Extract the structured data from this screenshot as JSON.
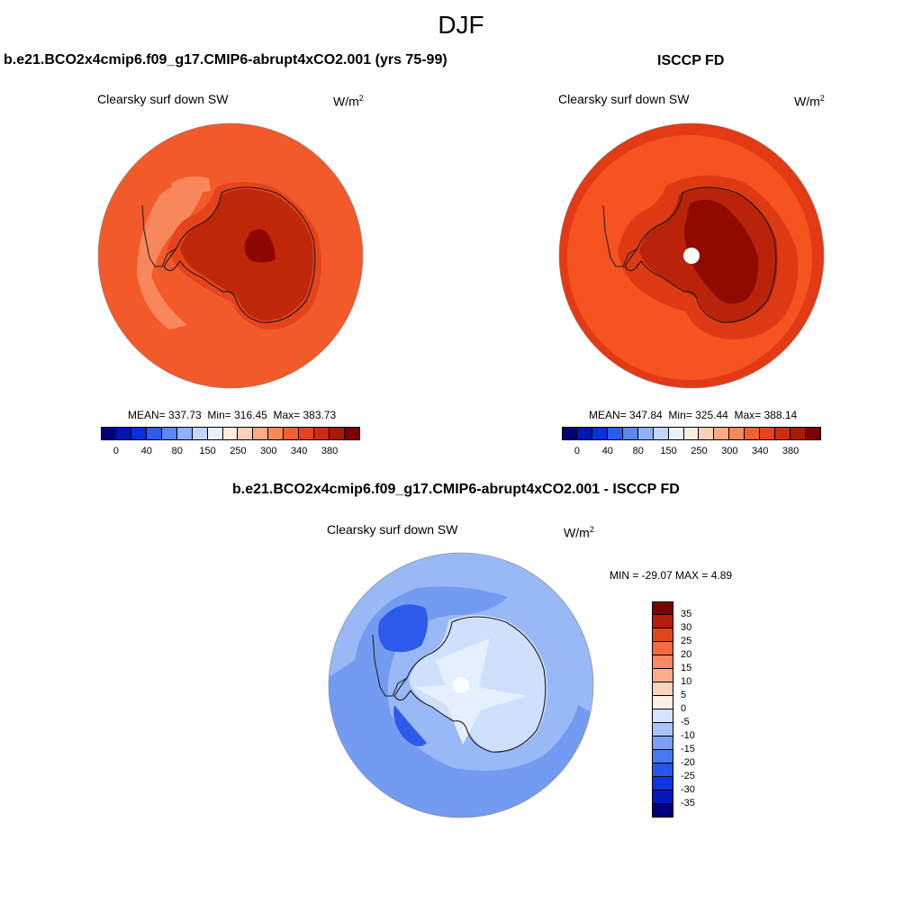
{
  "figure": {
    "season": "DJF",
    "panel_left": {
      "case_title": "b.e21.BCO2x4cmip6.f09_g17.CMIP6-abrupt4xCO2.001 (yrs 75-99)",
      "variable": "Clearsky surf down SW",
      "units_base": "W/m",
      "units_exp": "2",
      "mean_label": "MEAN=",
      "mean": "337.73",
      "min_label": "Min=",
      "min": "316.45",
      "max_label": "Max=",
      "max": "383.73"
    },
    "panel_right": {
      "case_title": "ISCCP FD",
      "variable": "Clearsky surf down SW",
      "units_base": "W/m",
      "units_exp": "2",
      "mean_label": "MEAN=",
      "mean": "347.84",
      "min_label": "Min=",
      "min": "325.44",
      "max_label": "Max=",
      "max": "388.14"
    },
    "panel_diff": {
      "case_title": "b.e21.BCO2x4cmip6.f09_g17.CMIP6-abrupt4xCO2.001 - ISCCP FD",
      "variable": "Clearsky surf down SW",
      "units": "W/m",
      "units_exp": "2",
      "minmax_text": "MIN = -29.07 MAX =   4.89"
    },
    "colorbar_main": {
      "colors": [
        "#00007a",
        "#0016b0",
        "#0530dc",
        "#2a5cf0",
        "#5b86f4",
        "#8fb1f8",
        "#c2d6fc",
        "#e8f2ff",
        "#ffeee0",
        "#fdd0b6",
        "#fbaa86",
        "#f8875c",
        "#f3602f",
        "#e8421d",
        "#cc2d12",
        "#a91a06",
        "#7d0000"
      ],
      "labels": [
        "0",
        "40",
        "80",
        "150",
        "250",
        "300",
        "340",
        "380"
      ]
    },
    "colorbar_diff": {
      "colors": [
        "#00007a",
        "#001abd",
        "#0a36e2",
        "#2655ee",
        "#4a78f2",
        "#7aa0f6",
        "#a9c4fa",
        "#d5e5fd",
        "#fff0e6",
        "#fdd2bb",
        "#fbad8c",
        "#f88a62",
        "#f26a3d",
        "#e1451d",
        "#b71c06",
        "#7d0000"
      ],
      "labels": [
        "35",
        "30",
        "25",
        "20",
        "15",
        "10",
        "5",
        "0",
        "-5",
        "-10",
        "-15",
        "-20",
        "-25",
        "-30",
        "-35"
      ]
    },
    "map_colors": {
      "left_ocean": "#f35a2a",
      "left_band": "#f8875c",
      "left_coast": "#e6431c",
      "left_ice": "#bf2709",
      "left_high": "#8c0700",
      "right_outer": "#e33a15",
      "right_ocean": "#f5531f",
      "right_coast": "#dd3a14",
      "right_ice": "#b8230a",
      "right_high": "#900a00",
      "diff_ocean": "#98b8f6",
      "diff_mid": "#6f98f1",
      "diff_dark": "#2c5be9",
      "diff_ice": "#cfe0fc",
      "diff_light": "#e5efff",
      "coastline": "#1a1a1a",
      "pole_hole": "#ffffff"
    }
  }
}
